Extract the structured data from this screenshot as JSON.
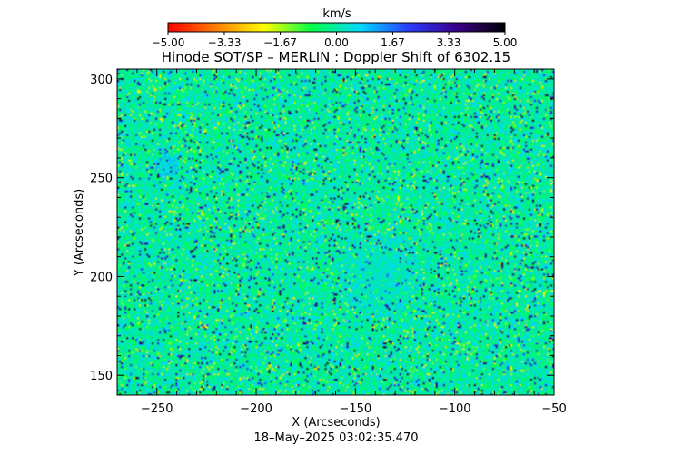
{
  "chart_data": {
    "type": "heatmap",
    "title": "Hinode SOT/SP – MERLIN : Doppler Shift of 6302.15",
    "xlabel": "X (Arcseconds)",
    "ylabel": "Y (Arcseconds)",
    "xlim": [
      -270,
      -50
    ],
    "ylim": [
      140,
      305
    ],
    "x_ticks": [
      -250,
      -200,
      -150,
      -100,
      -50
    ],
    "y_ticks": [
      150,
      200,
      250,
      300
    ],
    "colorbar": {
      "unit": "km/s",
      "range": [
        -5.0,
        5.0
      ],
      "ticks": [
        "-5.00",
        "-3.33",
        "-1.67",
        "0.00",
        "1.67",
        "3.33",
        "5.00"
      ],
      "stops": [
        "#ff0000",
        "#ff7f00",
        "#ffff00",
        "#00ff4a",
        "#00d7ff",
        "#2a3cff",
        "#3a008a",
        "#000000"
      ]
    },
    "field": {
      "background_value": 0.0,
      "features": [
        {
          "kind": "uniform patch (sunspot)",
          "center": [
            -138,
            201
          ],
          "radius": 22,
          "value": 0.2
        },
        {
          "kind": "small patch",
          "center": [
            -245,
            255
          ],
          "radius": 6,
          "value": 0.5
        }
      ]
    },
    "timestamp": "18–May–2025 03:02:35.470"
  }
}
